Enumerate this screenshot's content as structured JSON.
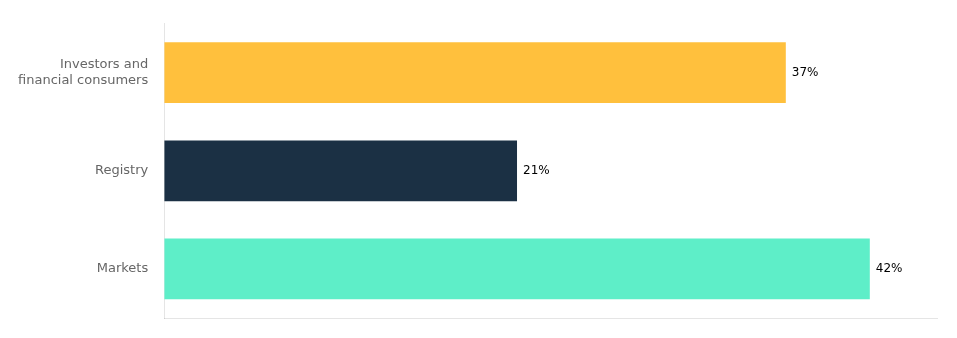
{
  "chart_data": {
    "type": "bar",
    "orientation": "horizontal",
    "categories": [
      "Markets",
      "Registry",
      "Investors and\nfinancial consumers"
    ],
    "values": [
      42,
      21,
      37
    ],
    "value_labels": [
      "42%",
      "21%",
      "37%"
    ],
    "colors": [
      "#5EEEC8",
      "#1B3044",
      "#FFC03D"
    ],
    "xlim": [
      0,
      46
    ],
    "data_labels": true,
    "tick_labels": "y",
    "grid": false
  }
}
